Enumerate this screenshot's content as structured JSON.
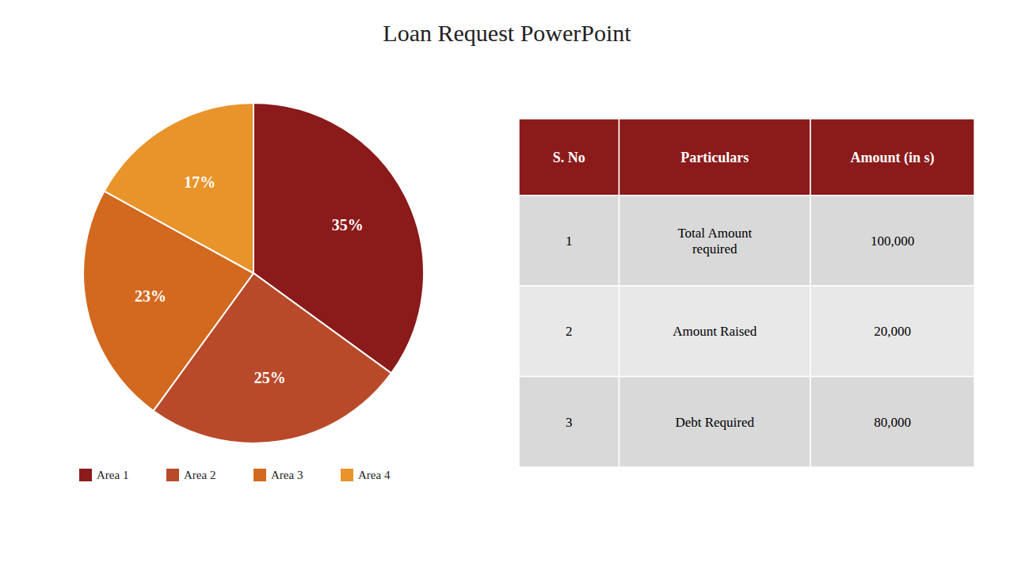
{
  "chart_data": [
    {
      "type": "pie",
      "title": "Loan Request PowerPoint",
      "categories": [
        "Area 1",
        "Area 2",
        "Area 3",
        "Area 4"
      ],
      "values": [
        35,
        25,
        23,
        17
      ],
      "value_labels": [
        "35%",
        "25%",
        "23%",
        "17%"
      ],
      "colors": [
        "#8B1A1A",
        "#B84A2A",
        "#D2691E",
        "#E8942A"
      ],
      "data_labels": true,
      "legend": "bottom"
    },
    {
      "type": "table",
      "columns": [
        "S. No",
        "Particulars",
        "Amount (in s)"
      ],
      "rows": [
        [
          "1",
          "Total Amount\nrequired",
          "100,000"
        ],
        [
          "2",
          "Amount Raised",
          "20,000"
        ],
        [
          "3",
          "Debt Required",
          "80,000"
        ]
      ],
      "color": "#8B1A1A"
    }
  ]
}
